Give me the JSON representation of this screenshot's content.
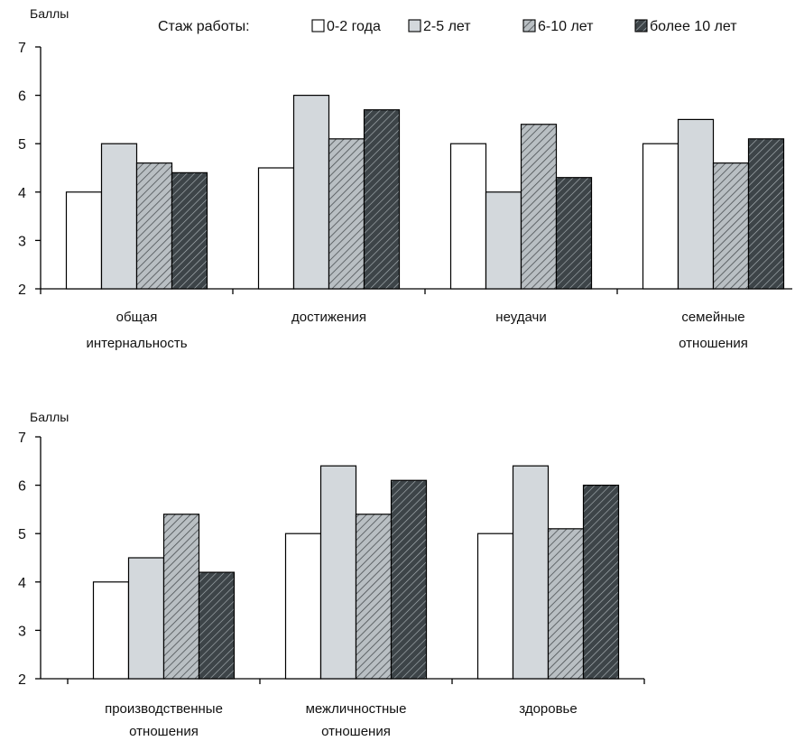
{
  "legend": {
    "title": "Стаж работы:",
    "items": [
      {
        "label": "0-2 года",
        "fill": "#ffffff",
        "pattern": "none"
      },
      {
        "label": "2-5 лет",
        "fill": "#d3d8dc",
        "pattern": "none"
      },
      {
        "label": "6-10 лет",
        "fill": "#b9bfc3",
        "pattern": "hatch"
      },
      {
        "label": "более 10 лет",
        "fill": "#3d4448",
        "pattern": "hatch"
      }
    ]
  },
  "colors": {
    "axis": "#000000",
    "hatch_light": "#4a4f52",
    "hatch_dark": "#b0b8bc"
  },
  "chart_data": [
    {
      "type": "bar",
      "ylabel": "Баллы",
      "ylim": [
        2,
        7
      ],
      "yticks": [
        2,
        3,
        4,
        5,
        6,
        7
      ],
      "grid": false,
      "categories": [
        [
          "общая",
          "интернальность"
        ],
        [
          "достижения"
        ],
        [
          "неудачи"
        ],
        [
          "семейные",
          "отношения"
        ]
      ],
      "series": [
        {
          "name": "0-2 года",
          "values": [
            4.0,
            4.5,
            5.0,
            5.0
          ]
        },
        {
          "name": "2-5 лет",
          "values": [
            5.0,
            6.0,
            4.0,
            5.5
          ]
        },
        {
          "name": "6-10 лет",
          "values": [
            4.6,
            5.1,
            5.4,
            4.6
          ]
        },
        {
          "name": "более 10 лет",
          "values": [
            4.4,
            5.7,
            4.3,
            5.1
          ]
        }
      ]
    },
    {
      "type": "bar",
      "ylabel": "Баллы",
      "ylim": [
        2,
        7
      ],
      "yticks": [
        2,
        3,
        4,
        5,
        6,
        7
      ],
      "grid": false,
      "categories": [
        [
          "производственные",
          "отношения"
        ],
        [
          "межличностные",
          "отношения"
        ],
        [
          "здоровье"
        ]
      ],
      "series": [
        {
          "name": "0-2 года",
          "values": [
            4.0,
            5.0,
            5.0
          ]
        },
        {
          "name": "2-5 лет",
          "values": [
            4.5,
            6.4,
            6.4
          ]
        },
        {
          "name": "6-10 лет",
          "values": [
            5.4,
            5.4,
            5.1
          ]
        },
        {
          "name": "более 10 лет",
          "values": [
            4.2,
            6.1,
            6.0
          ]
        }
      ]
    }
  ]
}
